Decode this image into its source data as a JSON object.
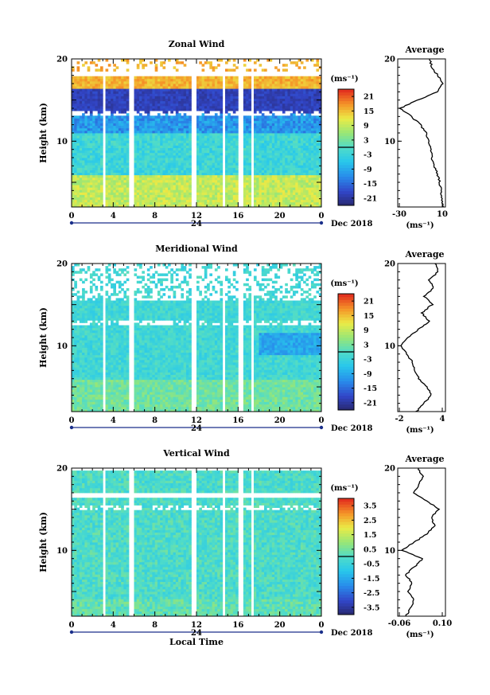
{
  "chart_data": [
    {
      "type": "heatmap",
      "title": "Zonal Wind",
      "ylabel": "Height (km)",
      "ylim": [
        2,
        20
      ],
      "y_ticks": [
        20,
        10
      ],
      "x_ticks": [
        "0",
        "4",
        "8",
        "12",
        "16",
        "20",
        "0"
      ],
      "date_axis_label": "24",
      "date_label": "Dec 2018",
      "colorbar": {
        "unit": "(ms⁻¹)",
        "ticks": [
          "21",
          "15",
          "9",
          "3",
          "-3",
          "-9",
          "-15",
          "-21"
        ],
        "vmin": -24,
        "vmax": 24
      },
      "gaps_hours": [
        [
          3.0,
          3.25
        ],
        [
          5.6,
          5.9
        ],
        [
          11.6,
          12.0
        ],
        [
          14.5,
          14.7
        ],
        [
          16.0,
          16.4
        ],
        [
          17.2,
          17.5
        ]
      ],
      "average_profile": {
        "title": "Average",
        "unit_label": "(ms⁻¹)",
        "x_ticks": [
          "-30",
          "10"
        ],
        "xlim": [
          -30,
          12
        ],
        "y_ticks": [
          20,
          10
        ],
        "heights": [
          2,
          3,
          4,
          5,
          6,
          7,
          8,
          9,
          10,
          11,
          12,
          13,
          14,
          15,
          16,
          17,
          18,
          19,
          20
        ],
        "values": [
          10,
          9,
          8,
          7,
          5,
          2,
          0,
          -1,
          -3,
          -5,
          -10,
          -18,
          -28,
          -12,
          5,
          10,
          5,
          0,
          -2
        ]
      }
    },
    {
      "type": "heatmap",
      "title": "Meridional Wind",
      "ylabel": "Height (km)",
      "ylim": [
        2,
        20
      ],
      "y_ticks": [
        20,
        10
      ],
      "x_ticks": [
        "0",
        "4",
        "8",
        "12",
        "16",
        "20",
        "0"
      ],
      "date_axis_label": "24",
      "date_label": "Dec 2018",
      "colorbar": {
        "unit": "(ms⁻¹)",
        "ticks": [
          "21",
          "15",
          "9",
          "3",
          "-3",
          "-9",
          "-15",
          "-21"
        ],
        "vmin": -24,
        "vmax": 24
      },
      "gaps_hours": [
        [
          3.0,
          3.25
        ],
        [
          5.6,
          5.9
        ],
        [
          11.6,
          12.0
        ],
        [
          14.5,
          14.7
        ],
        [
          16.0,
          16.4
        ],
        [
          17.2,
          17.5
        ]
      ],
      "average_profile": {
        "title": "Average",
        "unit_label": "(ms⁻¹)",
        "x_ticks": [
          "-2",
          "4"
        ],
        "xlim": [
          -2,
          4.4
        ],
        "y_ticks": [
          20,
          10
        ],
        "heights": [
          2,
          3,
          4,
          5,
          6,
          7,
          8,
          9,
          10,
          11,
          12,
          13,
          14,
          15,
          16,
          17,
          18,
          19,
          20
        ],
        "values": [
          0.5,
          1.5,
          2.5,
          2.0,
          0.8,
          0.3,
          0.0,
          -0.8,
          -1.6,
          -0.6,
          0.8,
          2.2,
          1.2,
          2.6,
          1.6,
          2.8,
          2.2,
          3.4,
          3.0
        ]
      }
    },
    {
      "type": "heatmap",
      "title": "Vertical Wind",
      "ylabel": "Height (km)",
      "xlabel": "Local Time",
      "ylim": [
        2,
        20
      ],
      "y_ticks": [
        20,
        10
      ],
      "x_ticks": [
        "0",
        "4",
        "8",
        "12",
        "16",
        "20",
        "0"
      ],
      "date_axis_label": "24",
      "date_label": "Dec 2018",
      "colorbar": {
        "unit": "(ms⁻¹)",
        "ticks": [
          "3.5",
          "2.5",
          "1.5",
          "0.5",
          "-0.5",
          "-1.5",
          "-2.5",
          "-3.5"
        ],
        "vmin": -4,
        "vmax": 4
      },
      "gaps_hours": [
        [
          3.0,
          3.25
        ],
        [
          5.6,
          5.9
        ],
        [
          11.6,
          12.0
        ],
        [
          14.5,
          14.7
        ],
        [
          16.0,
          16.4
        ],
        [
          17.2,
          17.5
        ]
      ],
      "average_profile": {
        "title": "Average",
        "unit_label": "(ms⁻¹)",
        "x_ticks": [
          "-0.06",
          "0.10"
        ],
        "xlim": [
          -0.1,
          0.13
        ],
        "y_ticks": [
          20,
          10
        ],
        "heights": [
          2,
          3,
          4,
          5,
          6,
          7,
          8,
          9,
          10,
          11,
          12,
          13,
          14,
          15,
          16,
          17,
          18,
          19,
          20
        ],
        "values": [
          -0.06,
          -0.04,
          -0.02,
          -0.05,
          -0.03,
          -0.06,
          -0.02,
          0.02,
          -0.08,
          -0.02,
          0.04,
          0.08,
          0.06,
          0.1,
          0.04,
          -0.02,
          0.0,
          0.02,
          0.0
        ]
      }
    }
  ]
}
